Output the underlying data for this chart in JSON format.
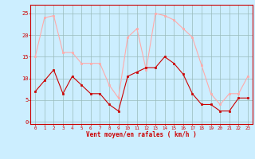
{
  "hours": [
    0,
    1,
    2,
    3,
    4,
    5,
    6,
    7,
    8,
    9,
    10,
    11,
    12,
    13,
    14,
    15,
    16,
    17,
    18,
    19,
    20,
    21,
    22,
    23
  ],
  "vent_moyen": [
    7,
    9.5,
    12,
    6.5,
    10.5,
    8.5,
    6.5,
    6.5,
    4,
    2.5,
    10.5,
    11.5,
    12.5,
    12.5,
    15,
    13.5,
    11,
    6.5,
    4,
    4,
    2.5,
    2.5,
    5.5,
    5.5
  ],
  "rafales": [
    15,
    24,
    24.5,
    16,
    16,
    13.5,
    13.5,
    13.5,
    8.5,
    5.5,
    19.5,
    21.5,
    12,
    25,
    24.5,
    23.5,
    21.5,
    19.5,
    13,
    6.5,
    4,
    6.5,
    6.5,
    10.5
  ],
  "color_moyen": "#cc0000",
  "color_rafales": "#ffaaaa",
  "bg_color": "#cceeff",
  "grid_color": "#99bbbb",
  "xlabel": "Vent moyen/en rafales ( km/h )",
  "xlabel_color": "#cc0000",
  "ylabel_ticks": [
    0,
    5,
    10,
    15,
    20,
    25
  ],
  "ylim": [
    -0.5,
    27
  ],
  "xlim": [
    -0.5,
    23.5
  ],
  "spine_color": "#cc0000"
}
